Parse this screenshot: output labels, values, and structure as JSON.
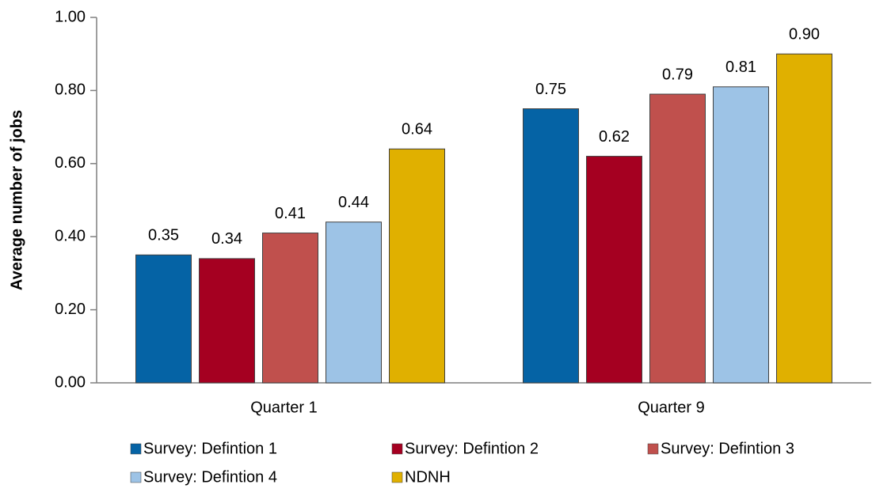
{
  "chart_data": {
    "type": "bar",
    "y_label": "Average number of jobs",
    "categories": [
      "Quarter 1",
      "Quarter 9"
    ],
    "series": [
      {
        "name": "Survey: Defintion 1",
        "color": "#0563a5",
        "values": [
          0.35,
          0.75
        ],
        "value_labels": [
          "0.35",
          "0.75"
        ]
      },
      {
        "name": "Survey: Defintion 2",
        "color": "#a50021",
        "values": [
          0.34,
          0.62
        ],
        "value_labels": [
          "0.34",
          "0.62"
        ]
      },
      {
        "name": "Survey: Defintion 3",
        "color": "#c0504d",
        "values": [
          0.41,
          0.79
        ],
        "value_labels": [
          "0.41",
          "0.79"
        ]
      },
      {
        "name": "Survey: Defintion 4",
        "color": "#9dc3e6",
        "values": [
          0.44,
          0.81
        ],
        "value_labels": [
          "0.44",
          "0.81"
        ]
      },
      {
        "name": "NDNH",
        "color": "#e0b000",
        "values": [
          0.64,
          0.9
        ],
        "value_labels": [
          "0.64",
          "0.90"
        ]
      }
    ],
    "ylim": [
      0,
      1
    ],
    "yticks": [
      {
        "value": 0,
        "label": "0.00"
      },
      {
        "value": 0.2,
        "label": "0.20"
      },
      {
        "value": 0.4,
        "label": "0.40"
      },
      {
        "value": 0.6,
        "label": "0.60"
      },
      {
        "value": 0.8,
        "label": "0.80"
      },
      {
        "value": 1,
        "label": "1.00"
      }
    ],
    "grid": false
  }
}
